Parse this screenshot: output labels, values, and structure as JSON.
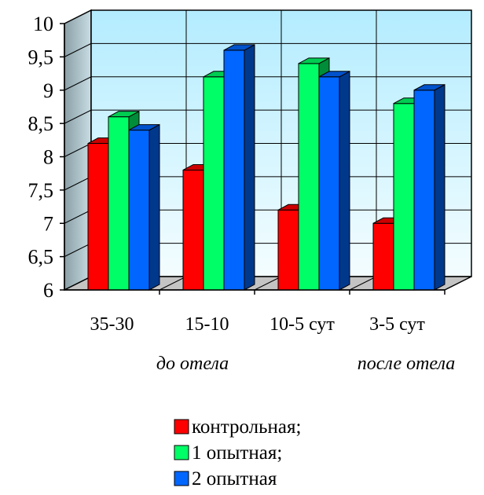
{
  "chart_data": {
    "type": "bar",
    "style": "3d-clustered",
    "categories": [
      "35-30",
      "15-10",
      "10-5 сут",
      "3-5 сут"
    ],
    "category_groups": [
      {
        "label": "до отела",
        "categories": [
          "35-30",
          "15-10"
        ]
      },
      {
        "label": "после отела",
        "categories": [
          "10-5 сут",
          "3-5 сут"
        ]
      }
    ],
    "series": [
      {
        "name": "контрольная;",
        "color": "#ff0000",
        "values": [
          8.2,
          7.8,
          7.2,
          7.0
        ]
      },
      {
        "name": "1 опытная;",
        "color": "#00ff66",
        "values": [
          8.6,
          9.2,
          9.4,
          8.8
        ]
      },
      {
        "name": "2 опытная",
        "color": "#0066ff",
        "values": [
          8.4,
          9.6,
          9.2,
          9.0
        ]
      }
    ],
    "yticks": [
      "6",
      "6,5",
      "7",
      "7,5",
      "8",
      "8,5",
      "9",
      "9,5",
      "10"
    ],
    "ylim": [
      6,
      10
    ],
    "grid": true,
    "legend_position": "bottom"
  }
}
